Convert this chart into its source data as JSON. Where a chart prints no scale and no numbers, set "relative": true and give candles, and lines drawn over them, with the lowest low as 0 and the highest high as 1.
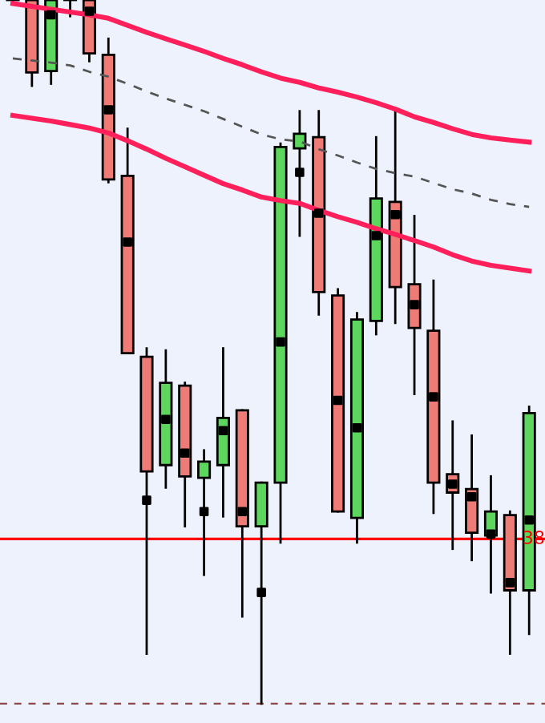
{
  "chart_data": {
    "type": "candlestick",
    "relative": true,
    "categories": [
      null,
      null,
      null,
      null,
      null,
      null,
      null,
      null,
      null,
      null,
      null,
      null,
      null,
      null,
      null,
      null,
      null,
      null,
      null,
      null,
      null,
      null,
      null,
      null,
      null,
      null,
      null,
      null
    ],
    "ohlc": [
      [
        1,
        1,
        0.995,
        1
      ],
      [
        1,
        1,
        0.878,
        0.897
      ],
      [
        0.899,
        1,
        0.881,
        1
      ],
      [
        1,
        1,
        0.977,
        1
      ],
      [
        1,
        1,
        0.913,
        0.924
      ],
      [
        0.922,
        0.945,
        0.741,
        0.745
      ],
      [
        0.75,
        0.817,
        0.498,
        0.498
      ],
      [
        0.493,
        0.505,
        0.071,
        0.33
      ],
      [
        0.339,
        0.502,
        0.307,
        0.456
      ],
      [
        0.452,
        0.456,
        0.252,
        0.323
      ],
      [
        0.321,
        0.36,
        0.183,
        0.344
      ],
      [
        0.339,
        0.505,
        0.266,
        0.406
      ],
      [
        0.417,
        0.417,
        0.124,
        0.252
      ],
      [
        0.252,
        0.314,
        0,
        0.314
      ],
      [
        0.314,
        0.796,
        0.229,
        0.791
      ],
      [
        0.789,
        0.842,
        0.665,
        0.81
      ],
      [
        0.805,
        0.842,
        0.553,
        0.585
      ],
      [
        0.58,
        0.589,
        0.273,
        0.273
      ],
      [
        0.264,
        0.555,
        0.229,
        0.546
      ],
      [
        0.544,
        0.805,
        0.525,
        0.718
      ],
      [
        0.713,
        0.846,
        0.541,
        0.592
      ],
      [
        0.596,
        0.693,
        0.44,
        0.534
      ],
      [
        0.53,
        0.601,
        0.271,
        0.314
      ],
      [
        0.326,
        0.401,
        0.22,
        0.3
      ],
      [
        0.305,
        0.381,
        0.204,
        0.243
      ],
      [
        0.239,
        0.323,
        0.158,
        0.273
      ],
      [
        0.268,
        0.273,
        0.071,
        0.161
      ],
      [
        0.161,
        0.422,
        0.099,
        0.413
      ]
    ],
    "colors": [
      "#ef7b76",
      "#ef7b76",
      "#5cd65c",
      "#ef7b76",
      "#ef7b76",
      "#ef7b76",
      "#ef7b76",
      "#ef7b76",
      "#5cd65c",
      "#ef7b76",
      "#5cd65c",
      "#5cd65c",
      "#ef7b76",
      "#5cd65c",
      "#5cd65c",
      "#5cd65c",
      "#ef7b76",
      "#ef7b76",
      "#5cd65c",
      "#5cd65c",
      "#ef7b76",
      "#ef7b76",
      "#ef7b76",
      "#ef7b76",
      "#ef7b76",
      "#5cd65c",
      "#ef7b76",
      "#5cd65c"
    ],
    "series": [
      {
        "type": "line",
        "color": "#ff1f5a",
        "line_style": "solid",
        "values": [
          0.995,
          0.991,
          0.987,
          0.983,
          0.979,
          0.974,
          0.964,
          0.954,
          0.945,
          0.936,
          0.927,
          0.917,
          0.908,
          0.898,
          0.889,
          0.883,
          0.875,
          0.869,
          0.862,
          0.854,
          0.845,
          0.834,
          0.826,
          0.817,
          0.809,
          0.804,
          0.801,
          0.798
        ]
      },
      {
        "type": "line",
        "color": "#ff1f5a",
        "line_style": "solid",
        "values": [
          0.836,
          0.832,
          0.828,
          0.823,
          0.818,
          0.811,
          0.8,
          0.788,
          0.775,
          0.763,
          0.751,
          0.739,
          0.73,
          0.72,
          0.715,
          0.711,
          0.701,
          0.692,
          0.684,
          0.675,
          0.667,
          0.658,
          0.649,
          0.638,
          0.629,
          0.623,
          0.619,
          0.615
        ]
      },
      {
        "type": "line",
        "color": "#555555",
        "line_style": "dashed",
        "values": [
          0.917,
          0.914,
          0.911,
          0.907,
          0.898,
          0.891,
          0.881,
          0.87,
          0.86,
          0.851,
          0.842,
          0.831,
          0.82,
          0.809,
          0.802,
          0.799,
          0.788,
          0.779,
          0.769,
          0.76,
          0.754,
          0.749,
          0.74,
          0.731,
          0.725,
          0.716,
          0.71,
          0.706
        ]
      },
      {
        "type": "scatter",
        "color": "#000000",
        "marker": "square",
        "values": [
          null,
          null,
          0.979,
          null,
          0.984,
          0.844,
          0.656,
          0.289,
          0.404,
          0.356,
          0.273,
          0.388,
          0.273,
          0.158,
          0.514,
          0.755,
          0.697,
          0.431,
          0.392,
          0.665,
          0.695,
          0.567,
          0.436,
          0.312,
          0.294,
          0.241,
          0.172,
          0.261
        ]
      }
    ],
    "ref_lines": [
      {
        "axis": "y",
        "value": 0.234,
        "color": "#ff0000",
        "line_style": "solid"
      },
      {
        "axis": "y",
        "value": 0,
        "color": "#8a4a4a",
        "line_style": "dashed"
      }
    ],
    "annotations": [
      {
        "text": "38",
        "y": 0.234
      }
    ]
  }
}
